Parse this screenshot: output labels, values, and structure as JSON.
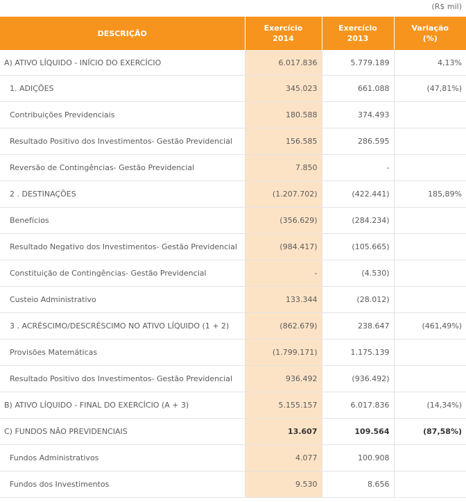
{
  "unit_label": "(R$ mil)",
  "header": {
    "descricao": "DESCRIÇÃO",
    "col2014": [
      "Exercício",
      "2014"
    ],
    "col2013": [
      "Exercício",
      "2013"
    ],
    "variacao": [
      "Variação",
      "(%)"
    ]
  },
  "rows": [
    {
      "name": "ativo-liquido-inicio",
      "desc": "A) ATIVO LÍQUIDO - INÍCIO DO EXERCÍCIO",
      "v2014": "6.017.836",
      "v2013": "5.779.189",
      "var": "4,13%",
      "indent": false,
      "bold": false
    },
    {
      "name": "adicoes",
      "desc": "1. ADIÇÕES",
      "v2014": "345.023",
      "v2013": "661.088",
      "var": "(47,81%)",
      "indent": true,
      "bold": false
    },
    {
      "name": "contribuicoes-previdenciais",
      "desc": "Contribuições Previdenciais",
      "v2014": "180.588",
      "v2013": "374.493",
      "var": "",
      "indent": true,
      "bold": false
    },
    {
      "name": "resultado-positivo-investimentos",
      "desc": "Resultado Positivo dos Investimentos- Gestão Previdencial",
      "v2014": "156.585",
      "v2013": "286.595",
      "var": "",
      "indent": true,
      "bold": false
    },
    {
      "name": "reversao-contingencias",
      "desc": "Reversão de Contingências- Gestão Previdencial",
      "v2014": "7.850",
      "v2013": "-",
      "var": "",
      "indent": true,
      "bold": false
    },
    {
      "name": "destinacoes",
      "desc": "2 . DESTINAÇÕES",
      "v2014": "(1.207.702)",
      "v2013": "(422.441)",
      "var": "185,89%",
      "indent": true,
      "bold": false
    },
    {
      "name": "beneficios",
      "desc": "Benefícios",
      "v2014": "(356.629)",
      "v2013": "(284.234)",
      "var": "",
      "indent": true,
      "bold": false
    },
    {
      "name": "resultado-negativo-investimentos",
      "desc": "Resultado Negativo dos Investimentos- Gestão Previdencial",
      "v2014": "(984.417)",
      "v2013": "(105.665)",
      "var": "",
      "indent": true,
      "bold": false
    },
    {
      "name": "constituicao-contingencias",
      "desc": "Constituição de Contingências- Gestão Previdencial",
      "v2014": "-",
      "v2013": "(4.530)",
      "var": "",
      "indent": true,
      "bold": false
    },
    {
      "name": "custeio-administrativo",
      "desc": "Custeio Administrativo",
      "v2014": "133.344",
      "v2013": "(28.012)",
      "var": "",
      "indent": true,
      "bold": false
    },
    {
      "name": "acrescimo-decrescimo",
      "desc": "3 . ACRÉSCIMO/DESCRÉSCIMO NO ATIVO LÍQUIDO (1 + 2)",
      "v2014": "(862.679)",
      "v2013": "238.647",
      "var": "(461,49%)",
      "indent": true,
      "bold": false
    },
    {
      "name": "provisoes-matematicas",
      "desc": "Provisões Matemáticas",
      "v2014": "(1.799.171)",
      "v2013": "1.175.139",
      "var": "",
      "indent": true,
      "bold": false
    },
    {
      "name": "resultado-positivo-investimentos-2",
      "desc": "Resultado Positivo dos Investimentos- Gestão Previdencial",
      "v2014": "936.492",
      "v2013": "(936.492)",
      "var": "",
      "indent": true,
      "bold": false
    },
    {
      "name": "ativo-liquido-final",
      "desc": "B) ATIVO LÍQUIDO - FINAL DO EXERCÍCIO (A + 3)",
      "v2014": "5.155.157",
      "v2013": "6.017.836",
      "var": "(14,34%)",
      "indent": false,
      "bold": false
    },
    {
      "name": "fundos-nao-previdenciais",
      "desc": "C) FUNDOS NÃO PREVIDENCIAIS",
      "v2014": "13.607",
      "v2013": "109.564",
      "var": "(87,58%)",
      "indent": false,
      "bold": true
    },
    {
      "name": "fundos-administrativos",
      "desc": "Fundos Administrativos",
      "v2014": "4.077",
      "v2013": "100.908",
      "var": "",
      "indent": true,
      "bold": false
    },
    {
      "name": "fundos-investimentos",
      "desc": "Fundos dos Investimentos",
      "v2014": "9.530",
      "v2013": "8.656",
      "var": "",
      "indent": true,
      "bold": false
    }
  ],
  "colors": {
    "header_bg": "#f7941d",
    "highlight_col": "#fde3c6"
  }
}
